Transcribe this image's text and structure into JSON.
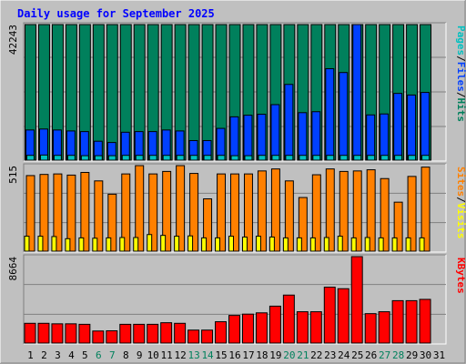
{
  "title": "Daily usage for September 2025",
  "colors": {
    "background": "#C0C0C0",
    "plot_background": "#C0C0C0",
    "title_text": "#0000FF",
    "axis_text": "#000000",
    "weekend_text": "#00805C",
    "gridline": "#808080",
    "pages": "#00C0C0",
    "files": "#0040FF",
    "hits": "#00805C",
    "sites": "#FF8000",
    "visits": "#FFFF00",
    "kbytes": "#FF0000"
  },
  "chart_data": [
    {
      "type": "bar",
      "name": "hits-files-pages",
      "categories": [
        "1",
        "2",
        "3",
        "4",
        "5",
        "6",
        "7",
        "8",
        "9",
        "10",
        "11",
        "12",
        "13",
        "14",
        "15",
        "16",
        "17",
        "18",
        "19",
        "20",
        "21",
        "22",
        "23",
        "24",
        "25",
        "26",
        "27",
        "28",
        "29",
        "30",
        "31"
      ],
      "weekend_days": [
        "6",
        "7",
        "13",
        "14",
        "20",
        "21",
        "27",
        "28"
      ],
      "y_max_label": "42243",
      "ylim": [
        0,
        42243
      ],
      "legend": [
        "Pages",
        "/",
        "Files",
        "/",
        "Hits"
      ],
      "series": [
        {
          "name": "Hits",
          "values": [
            42243,
            42243,
            42243,
            42243,
            42243,
            42243,
            42243,
            42243,
            42243,
            42243,
            42243,
            42243,
            42243,
            42243,
            42243,
            42243,
            42243,
            42243,
            42243,
            42243,
            42243,
            42243,
            42243,
            42243,
            42243,
            42243,
            42243,
            42243,
            42243,
            42243,
            null
          ]
        },
        {
          "name": "Files",
          "values": [
            9400,
            9700,
            9400,
            9100,
            8900,
            5900,
            5500,
            8700,
            8900,
            8900,
            9400,
            9100,
            6100,
            6100,
            9900,
            13500,
            14000,
            14300,
            17300,
            23600,
            14800,
            15100,
            28500,
            27300,
            42243,
            14100,
            14400,
            20800,
            20300,
            21100,
            null
          ]
        },
        {
          "name": "Pages",
          "values": [
            1500,
            1600,
            1500,
            1500,
            1400,
            1400,
            1400,
            1500,
            1500,
            1500,
            1500,
            1500,
            1500,
            1500,
            1500,
            1400,
            1400,
            1500,
            1500,
            1500,
            1500,
            1500,
            1500,
            1500,
            1500,
            1500,
            1500,
            1500,
            1500,
            1500,
            null
          ]
        }
      ]
    },
    {
      "type": "bar",
      "name": "visits-sites",
      "y_max_label": "515",
      "ylim": [
        0,
        515
      ],
      "legend": [
        "Sites",
        "/",
        "Visits"
      ],
      "series": [
        {
          "name": "Visits",
          "values": [
            455,
            462,
            465,
            458,
            474,
            423,
            343,
            465,
            515,
            465,
            480,
            515,
            468,
            315,
            465,
            465,
            465,
            483,
            495,
            423,
            323,
            460,
            495,
            480,
            483,
            490,
            437,
            295,
            450,
            506,
            null
          ]
        },
        {
          "name": "Sites",
          "values": [
            90,
            90,
            88,
            75,
            80,
            78,
            80,
            82,
            82,
            100,
            95,
            90,
            92,
            80,
            80,
            90,
            85,
            90,
            85,
            80,
            80,
            80,
            82,
            90,
            80,
            82,
            80,
            80,
            80,
            80,
            null
          ]
        }
      ]
    },
    {
      "type": "bar",
      "name": "kbytes",
      "y_max_label": "8664",
      "ylim": [
        0,
        8664
      ],
      "legend": [
        "KBytes"
      ],
      "series": [
        {
          "name": "KBytes",
          "values": [
            1980,
            1980,
            1930,
            1930,
            1880,
            1210,
            1230,
            1880,
            1880,
            1880,
            2040,
            1980,
            1300,
            1300,
            2140,
            2770,
            2900,
            3030,
            3700,
            4810,
            3140,
            3140,
            5600,
            5450,
            8664,
            2950,
            3140,
            4250,
            4250,
            4380,
            null
          ]
        }
      ]
    }
  ]
}
